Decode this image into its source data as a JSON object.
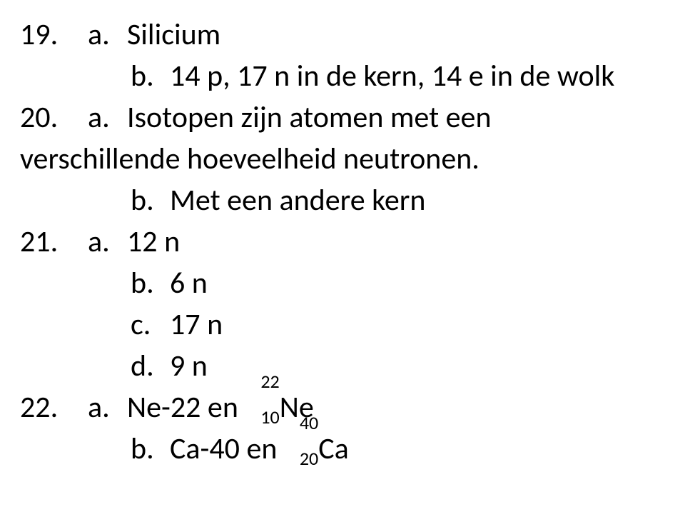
{
  "q19": {
    "num": "19.",
    "a_label": "a.",
    "a_text": "Silicium",
    "b_label": "b.",
    "b_text": "14 p, 17 n in de kern, 14 e in de wolk"
  },
  "q20": {
    "num": "20.",
    "a_label": "a.",
    "a_text_line1": "Isotopen zijn atomen met een",
    "a_text_line2": "verschillende hoeveelheid neutronen.",
    "b_label": "b.",
    "b_text": "Met een andere kern"
  },
  "q21": {
    "num": "21.",
    "a_label": "a.",
    "a_text": "12 n",
    "b_label": "b.",
    "b_text": "6 n",
    "c_label": "c.",
    "c_text": "17 n",
    "d_label": "d.",
    "d_text": "9 n"
  },
  "q22": {
    "num": "22.",
    "a_label": "a.",
    "a_prefix": "Ne-22 en ",
    "a_mass": "22",
    "a_z": "10",
    "a_sym": "Ne",
    "b_label": "b.",
    "b_prefix": "Ca-40 en ",
    "b_mass": "40",
    "b_z": "20",
    "b_sym": "Ca"
  }
}
